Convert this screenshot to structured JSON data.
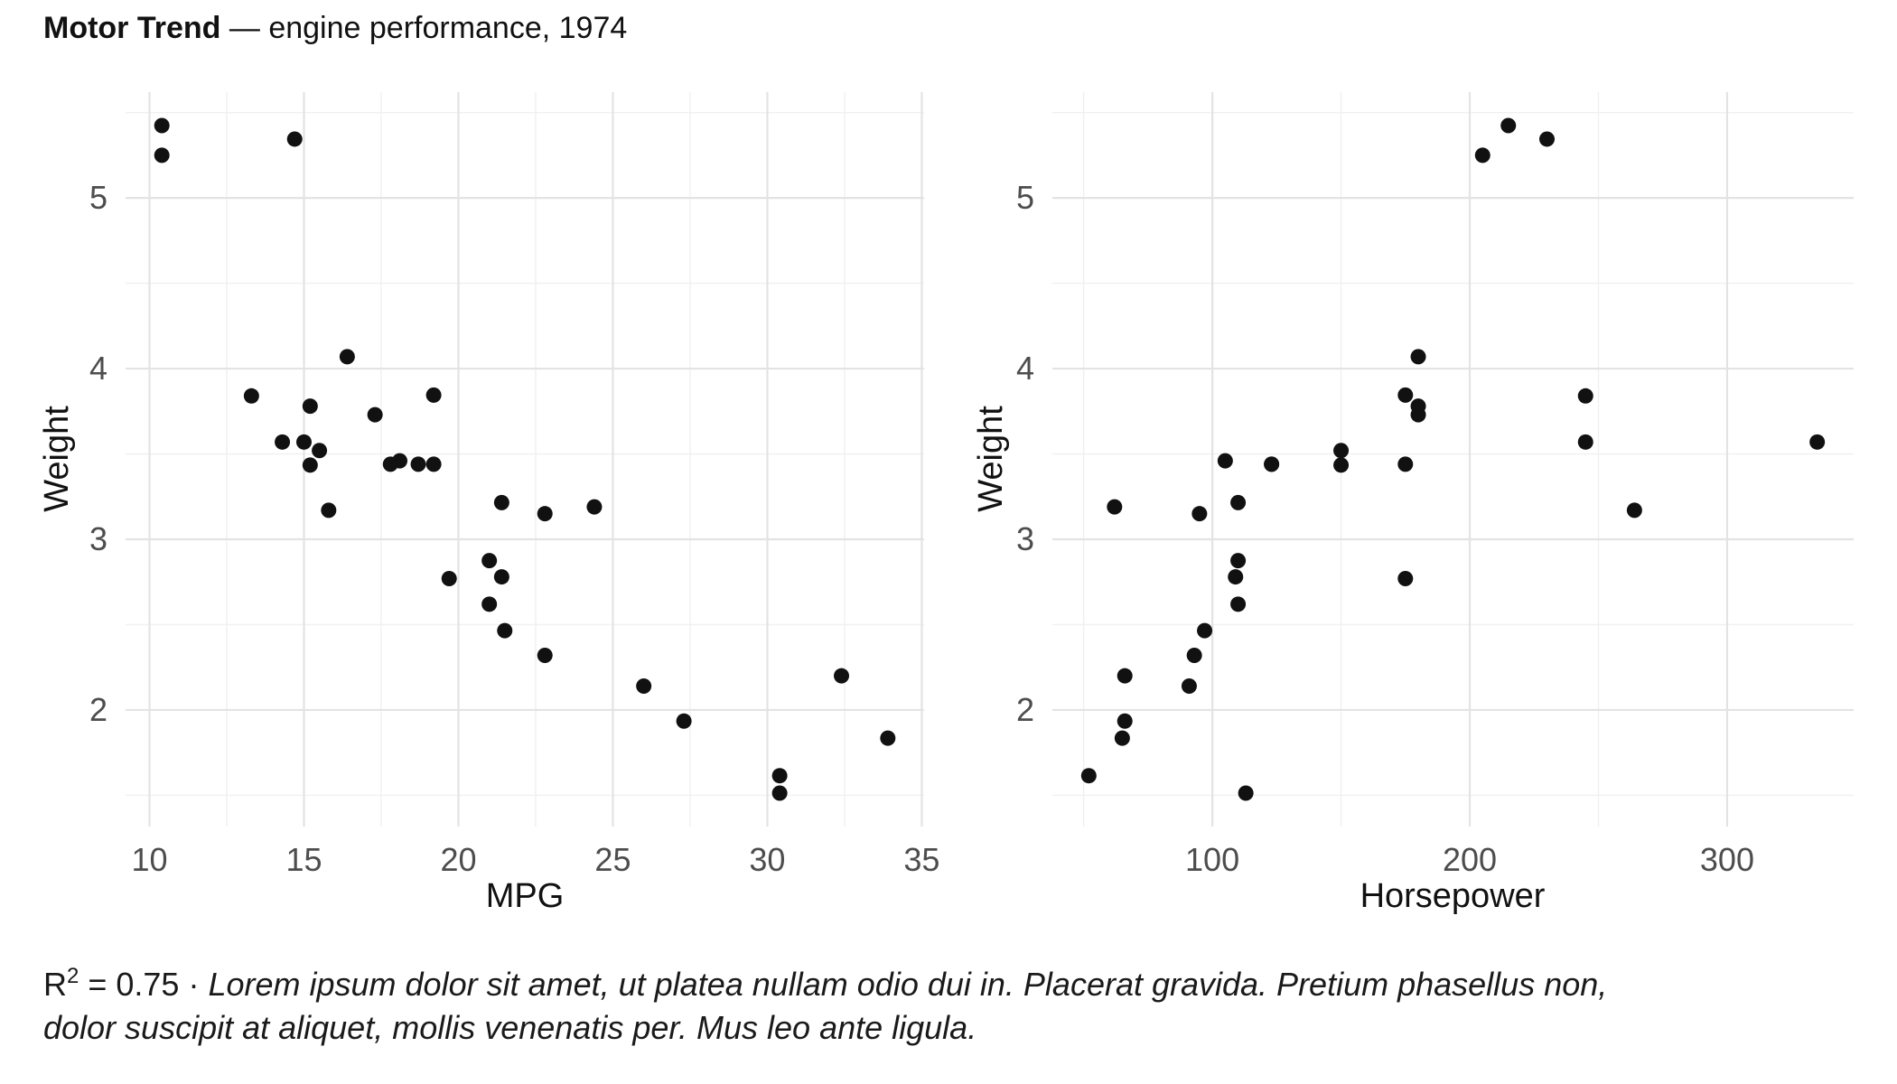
{
  "title": {
    "brand": "Motor Trend",
    "rest": " — engine performance, 1974"
  },
  "caption": {
    "r_label": "R",
    "r_sup": "2",
    "stat_value": " = 0.75",
    "separator": " · ",
    "line1": "Lorem ipsum dolor sit amet, ut platea nullam odio dui in. Placerat gravida. Pretium phasellus non,",
    "line2": "dolor suscipit at aliquet, mollis venenatis per. Mus leo ante ligula."
  },
  "colors": {
    "background": "#ffffff",
    "point": "#111111",
    "grid_major": "#e3e3e3",
    "grid_minor": "#f0f0f0",
    "tick_text": "#4d4d4d",
    "axis_title_text": "#111111",
    "title_text": "#111111"
  },
  "chart_data": [
    {
      "type": "scatter",
      "xlabel": "MPG",
      "ylabel": "Weight",
      "xlim": [
        9.225,
        35.075
      ],
      "ylim": [
        1.317,
        5.62
      ],
      "xticks": [
        10,
        15,
        20,
        25,
        30,
        35
      ],
      "xminor": [
        12.5,
        17.5,
        22.5,
        27.5,
        32.5
      ],
      "yticks": [
        2,
        3,
        4,
        5
      ],
      "yminor": [
        1.5,
        2.5,
        3.5,
        4.5,
        5.5
      ],
      "grid": true,
      "legend": false,
      "x": [
        21.0,
        21.0,
        22.8,
        21.4,
        18.7,
        18.1,
        14.3,
        24.4,
        22.8,
        19.2,
        17.8,
        16.4,
        17.3,
        15.2,
        10.4,
        10.4,
        14.7,
        32.4,
        30.4,
        33.9,
        21.5,
        15.5,
        15.2,
        13.3,
        19.2,
        27.3,
        26.0,
        30.4,
        15.8,
        19.7,
        15.0,
        21.4
      ],
      "y": [
        2.62,
        2.875,
        2.32,
        3.215,
        3.44,
        3.46,
        3.57,
        3.19,
        3.15,
        3.44,
        3.44,
        4.07,
        3.73,
        3.78,
        5.25,
        5.424,
        5.345,
        2.2,
        1.615,
        1.835,
        2.465,
        3.52,
        3.435,
        3.84,
        3.845,
        1.935,
        2.14,
        1.513,
        3.17,
        2.77,
        3.57,
        2.78
      ]
    },
    {
      "type": "scatter",
      "xlabel": "Horsepower",
      "ylabel": "Weight",
      "xlim": [
        37.85,
        349.15
      ],
      "ylim": [
        1.317,
        5.62
      ],
      "xticks": [
        100,
        200,
        300
      ],
      "xminor": [
        50,
        150,
        250
      ],
      "yticks": [
        2,
        3,
        4,
        5
      ],
      "yminor": [
        1.5,
        2.5,
        3.5,
        4.5,
        5.5
      ],
      "grid": true,
      "legend": false,
      "x": [
        110,
        110,
        93,
        110,
        175,
        105,
        245,
        62,
        95,
        123,
        123,
        180,
        180,
        180,
        205,
        215,
        230,
        66,
        52,
        65,
        97,
        150,
        150,
        245,
        175,
        66,
        91,
        113,
        264,
        175,
        335,
        109
      ],
      "y": [
        2.62,
        2.875,
        2.32,
        3.215,
        3.44,
        3.46,
        3.57,
        3.19,
        3.15,
        3.44,
        3.44,
        4.07,
        3.73,
        3.78,
        5.25,
        5.424,
        5.345,
        2.2,
        1.615,
        1.835,
        2.465,
        3.52,
        3.435,
        3.84,
        3.845,
        1.935,
        2.14,
        1.513,
        3.17,
        2.77,
        3.57,
        2.78
      ]
    }
  ]
}
